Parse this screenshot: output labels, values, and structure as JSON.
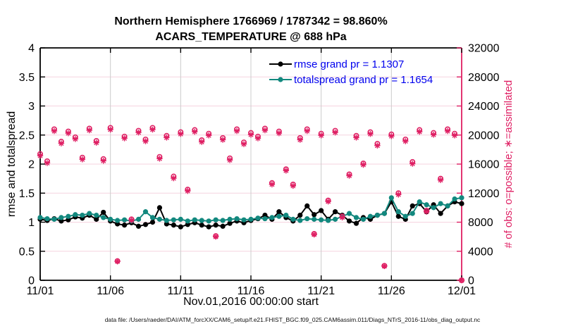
{
  "figure": {
    "title_line1": "Northern Hemisphere 1766969 / 1787342 = 98.860%",
    "title_line2": "ACARS_TEMPERATURE @ 688 hPa",
    "caption": "data file: /Users/raeder/DAI/ATM_forcXX/CAM6_setup/f.e21.FHIST_BGC.f09_025.CAM6assim.011/Diags_NTrS_2016-11/obs_diag_output.nc"
  },
  "chart_data": {
    "type": "line",
    "title": "Northern Hemisphere 1766969 / 1787342 = 98.860%",
    "subtitle": "ACARS_TEMPERATURE @ 688 hPa",
    "xlabel": "Nov.01,2016 00:00:00 start",
    "ylabel_left": "rmse and totalspread",
    "ylabel_right": "# of obs: o=possible; ∗=assimilated",
    "legend_position": "top-center-inside, no box",
    "grid": "on",
    "x_ticks": {
      "days": [
        0,
        5,
        10,
        15,
        20,
        25,
        30
      ],
      "labels": [
        "11/01",
        "11/06",
        "11/11",
        "11/16",
        "11/21",
        "11/26",
        "12/01"
      ]
    },
    "y_left": {
      "min": 0,
      "max": 4,
      "ticks": [
        0,
        0.5,
        1,
        1.5,
        2,
        2.5,
        3,
        3.5,
        4
      ],
      "labels": [
        "0",
        "0.5",
        "1",
        "1.5",
        "2",
        "2.5",
        "3",
        "3.5",
        "4"
      ]
    },
    "y_right": {
      "min": 0,
      "max": 32000,
      "ticks": [
        0,
        4000,
        8000,
        12000,
        16000,
        20000,
        24000,
        28000,
        32000
      ],
      "labels": [
        "0",
        "4000",
        "8000",
        "12000",
        "16000",
        "20000",
        "24000",
        "28000",
        "32000"
      ]
    },
    "colors": {
      "pink": "#df1f63",
      "teal": "#12887e",
      "black": "#000000",
      "legend_text": "#0000ee",
      "grid_vertical": "#cccccc",
      "grid_horizontal": "#f6d3df"
    },
    "x_days": [
      0,
      0.5,
      1,
      1.5,
      2,
      2.5,
      3,
      3.5,
      4,
      4.5,
      5,
      5.5,
      6,
      6.5,
      7,
      7.5,
      8,
      8.5,
      9,
      9.5,
      10,
      10.5,
      11,
      11.5,
      12,
      12.5,
      13,
      13.5,
      14,
      14.5,
      15,
      15.5,
      16,
      16.5,
      17,
      17.5,
      18,
      18.5,
      19,
      19.5,
      20,
      20.5,
      21,
      21.5,
      22,
      22.5,
      23,
      23.5,
      24,
      24.5,
      25,
      25.5,
      26,
      26.5,
      27,
      27.5,
      28,
      28.5,
      29,
      29.5,
      30
    ],
    "series": [
      {
        "name": "rmse",
        "legend": "rmse grand pr = 1.1307",
        "axis": "left",
        "marker": "filled-circle",
        "color": "#000000",
        "values": [
          1.05,
          1.03,
          1.06,
          1.02,
          1.04,
          1.09,
          1.07,
          1.12,
          1.05,
          1.17,
          1.02,
          0.97,
          0.95,
          0.99,
          0.93,
          0.96,
          1.0,
          1.25,
          0.97,
          0.95,
          0.92,
          0.96,
          0.99,
          0.95,
          0.92,
          0.95,
          0.93,
          0.98,
          1.02,
          0.99,
          1.03,
          1.06,
          1.12,
          1.05,
          1.18,
          1.08,
          1.02,
          1.12,
          1.28,
          1.13,
          1.2,
          1.05,
          1.18,
          1.12,
          1.02,
          0.98,
          1.08,
          1.05,
          1.12,
          1.15,
          1.35,
          1.1,
          1.05,
          1.28,
          1.32,
          1.18,
          1.3,
          1.15,
          1.28,
          1.35,
          1.32
        ]
      },
      {
        "name": "totalspread",
        "legend": "totalspread grand pr = 1.1654",
        "axis": "left",
        "marker": "filled-circle",
        "color": "#12887e",
        "values": [
          1.08,
          1.06,
          1.05,
          1.08,
          1.1,
          1.13,
          1.12,
          1.15,
          1.12,
          1.08,
          1.05,
          1.03,
          1.04,
          1.02,
          1.05,
          1.18,
          1.08,
          1.05,
          1.03,
          1.04,
          1.05,
          1.02,
          1.04,
          1.03,
          1.02,
          1.04,
          1.03,
          1.05,
          1.06,
          1.04,
          1.05,
          1.07,
          1.06,
          1.08,
          1.1,
          1.12,
          1.05,
          1.03,
          1.06,
          1.05,
          1.04,
          1.03,
          1.05,
          1.1,
          1.15,
          1.08,
          1.05,
          1.1,
          1.12,
          1.15,
          1.42,
          1.18,
          1.1,
          1.15,
          1.35,
          1.3,
          1.25,
          1.32,
          1.28,
          1.4,
          1.42
        ]
      },
      {
        "name": "possible",
        "legend": null,
        "axis": "right",
        "marker": "o",
        "color": "#df1f63",
        "values": [
          17400,
          16400,
          20800,
          19100,
          20500,
          19700,
          16900,
          20900,
          19200,
          16700,
          21000,
          2650,
          19800,
          8400,
          20600,
          19400,
          21000,
          17000,
          19900,
          14300,
          20400,
          12500,
          20700,
          19300,
          20200,
          6100,
          19600,
          16800,
          20800,
          19000,
          20300,
          19800,
          20900,
          13400,
          20500,
          15300,
          13200,
          19600,
          20800,
          6400,
          20200,
          11000,
          20600,
          8800,
          14600,
          19900,
          16100,
          20400,
          18800,
          2000,
          20100,
          12000,
          19400,
          16300,
          20700,
          9600,
          20300,
          14000,
          20800,
          20200,
          0
        ]
      },
      {
        "name": "assimilated",
        "legend": null,
        "axis": "right",
        "marker": "asterisk",
        "color": "#df1f63",
        "values": [
          17150,
          16150,
          20550,
          18850,
          20250,
          19450,
          16650,
          20650,
          18950,
          16450,
          20750,
          2600,
          19550,
          8250,
          20350,
          19150,
          20750,
          16750,
          19650,
          14050,
          20150,
          12300,
          20450,
          19050,
          19950,
          6000,
          19350,
          16550,
          20550,
          18750,
          20050,
          19550,
          20650,
          13200,
          20250,
          15100,
          13000,
          19350,
          20550,
          6300,
          19950,
          10850,
          20350,
          8650,
          14400,
          19650,
          15900,
          20150,
          18550,
          1950,
          19850,
          11800,
          19150,
          16050,
          20450,
          9450,
          20050,
          13800,
          20550,
          19950,
          0
        ]
      }
    ]
  }
}
